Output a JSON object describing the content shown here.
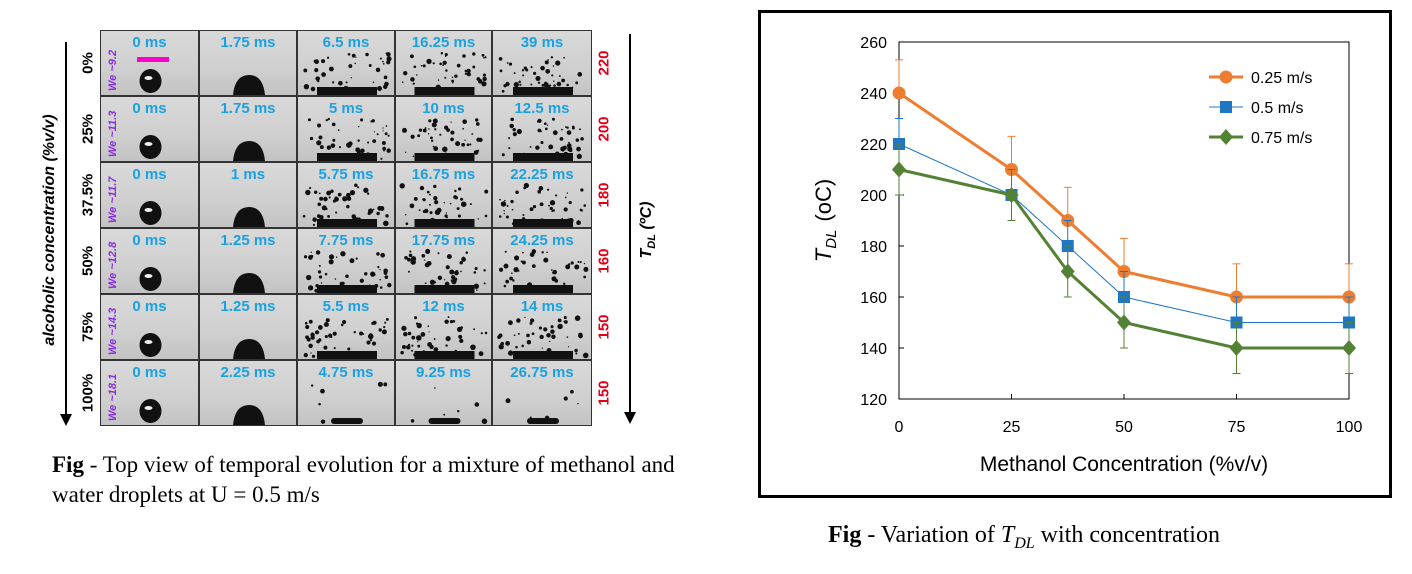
{
  "left_figure": {
    "ylabel": "alcoholic concentration (%v/v)",
    "tdl_axis_label": "T_DL (ºC)",
    "rows": [
      {
        "concentration": "0%",
        "we": "We ~9.2",
        "tdl": "220",
        "times": [
          "0 ms",
          "1.75 ms",
          "6.5 ms",
          "16.25 ms",
          "39 ms"
        ]
      },
      {
        "concentration": "25%",
        "we": "We ~11.3",
        "tdl": "200",
        "times": [
          "0 ms",
          "1.75 ms",
          "5 ms",
          "10 ms",
          "12.5 ms"
        ]
      },
      {
        "concentration": "37.5%",
        "we": "We ~11.7",
        "tdl": "180",
        "times": [
          "0 ms",
          "1 ms",
          "5.75 ms",
          "16.75 ms",
          "22.25 ms"
        ]
      },
      {
        "concentration": "50%",
        "we": "We ~12.8",
        "tdl": "160",
        "times": [
          "0 ms",
          "1.25 ms",
          "7.75 ms",
          "17.75 ms",
          "24.25 ms"
        ]
      },
      {
        "concentration": "75%",
        "we": "We ~14.3",
        "tdl": "150",
        "times": [
          "0 ms",
          "1.25 ms",
          "5.5 ms",
          "12 ms",
          "14 ms"
        ]
      },
      {
        "concentration": "100%",
        "we": "We ~18.1",
        "tdl": "150",
        "times": [
          "0 ms",
          "2.25 ms",
          "4.75 ms",
          "9.25 ms",
          "26.75 ms"
        ]
      }
    ],
    "caption_bold": "Fig",
    "caption_text": " - Top view of temporal evolution for a mixture of methanol and water droplets at U = 0.5 m/s"
  },
  "right_figure": {
    "caption_bold": "Fig",
    "caption_text_pre": " - Variation of ",
    "caption_symbol": "T",
    "caption_sub": "DL",
    "caption_text_post": " with concentration"
  },
  "chart_data": {
    "type": "line",
    "xlabel": "Methanol Concentration (%v/v)",
    "ylabel": "T_DL (oC)",
    "ylabel_main": "T",
    "ylabel_sub": "DL",
    "ylabel_unit": "(oC)",
    "xlim": [
      0,
      100
    ],
    "ylim": [
      120,
      260
    ],
    "xticks": [
      0,
      25,
      50,
      75,
      100
    ],
    "yticks": [
      120,
      140,
      160,
      180,
      200,
      220,
      240,
      260
    ],
    "legend_position": "top-right",
    "x": [
      0,
      25,
      37.5,
      50,
      75,
      100
    ],
    "series": [
      {
        "name": "0.25 m/s",
        "color": "#ed7d31",
        "marker": "circle",
        "values": [
          240,
          210,
          190,
          170,
          160,
          160
        ],
        "err": [
          13,
          13,
          13,
          13,
          13,
          13
        ]
      },
      {
        "name": "0.5 m/s",
        "color": "#1f77c4",
        "marker": "square",
        "values": [
          220,
          200,
          180,
          160,
          150,
          150
        ],
        "err": [
          10,
          10,
          10,
          10,
          10,
          10
        ]
      },
      {
        "name": "0.75 m/s",
        "color": "#548235",
        "marker": "diamond",
        "values": [
          210,
          200,
          170,
          150,
          140,
          140
        ],
        "err": [
          10,
          10,
          10,
          10,
          10,
          10
        ]
      }
    ]
  }
}
